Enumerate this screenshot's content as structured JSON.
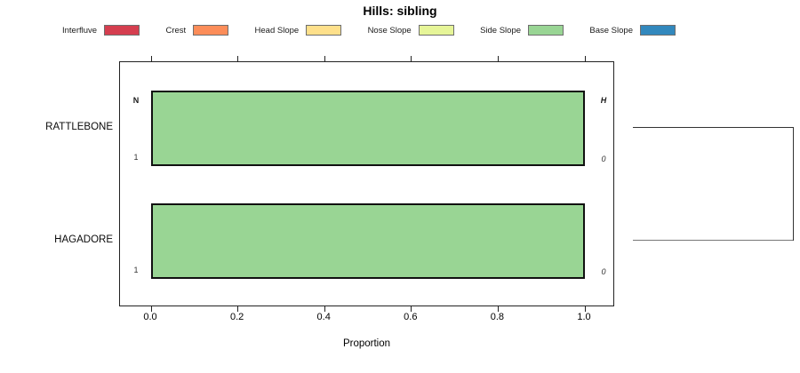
{
  "chart": {
    "title": "Hills: sibling",
    "xlabel": "Proportion"
  },
  "legend": {
    "items": [
      {
        "label": "Interfluve",
        "color": "#d53e4f"
      },
      {
        "label": "Crest",
        "color": "#fc8d59"
      },
      {
        "label": "Head Slope",
        "color": "#fee08b"
      },
      {
        "label": "Nose Slope",
        "color": "#e6f598"
      },
      {
        "label": "Side Slope",
        "color": "#99d594"
      },
      {
        "label": "Base Slope",
        "color": "#3288bd"
      }
    ]
  },
  "chart_data": {
    "type": "bar",
    "orientation": "horizontal",
    "stacked": true,
    "title": "Hills: sibling",
    "xlabel": "Proportion",
    "xlim": [
      0,
      1
    ],
    "x_ticks": [
      0.0,
      0.2,
      0.4,
      0.6,
      0.8,
      1.0
    ],
    "grid": false,
    "legend_position": "top",
    "categories": [
      "RATTLEBONE",
      "HAGADORE"
    ],
    "series": [
      {
        "name": "Interfluve",
        "color": "#d53e4f",
        "values": [
          0,
          0
        ]
      },
      {
        "name": "Crest",
        "color": "#fc8d59",
        "values": [
          0,
          0
        ]
      },
      {
        "name": "Head Slope",
        "color": "#fee08b",
        "values": [
          0,
          0
        ]
      },
      {
        "name": "Nose Slope",
        "color": "#e6f598",
        "values": [
          0,
          0
        ]
      },
      {
        "name": "Side Slope",
        "color": "#99d594",
        "values": [
          1,
          1
        ]
      },
      {
        "name": "Base Slope",
        "color": "#3288bd",
        "values": [
          0,
          0
        ]
      }
    ],
    "annotations": {
      "n_header": "N",
      "h_header": "H",
      "rows": [
        {
          "n": "1",
          "h": "0"
        },
        {
          "n": "1",
          "h": "0"
        }
      ]
    },
    "dendrogram": {
      "description": "two leaves joined by a right-side bracket",
      "pairs": [
        [
          "RATTLEBONE",
          "HAGADORE"
        ]
      ]
    }
  }
}
